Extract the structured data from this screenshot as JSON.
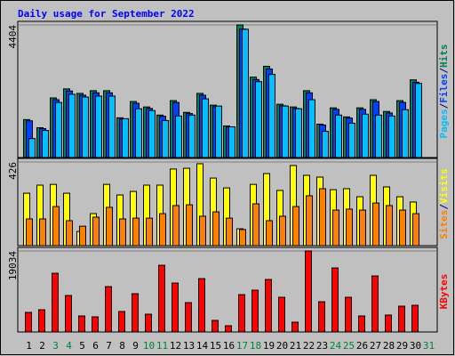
{
  "title": "Daily usage for September 2022",
  "chart_data": [
    {
      "type": "bar",
      "legend_separator": "/",
      "ylim": [
        0,
        4404
      ],
      "yticks": [
        4404
      ],
      "grid": true,
      "series": [
        {
          "name": "Pages",
          "color": "#00c0ff",
          "values": [
            630,
            900,
            1830,
            2100,
            2010,
            2040,
            2040,
            1290,
            1620,
            1560,
            1230,
            1380,
            1410,
            1950,
            1710,
            1020,
            4260,
            2520,
            2760,
            1710,
            1620,
            1920,
            870,
            1410,
            1140,
            1440,
            1410,
            1380,
            1590,
            2460,
            null
          ]
        },
        {
          "name": "Files",
          "color": "#0040ff",
          "values": [
            1220,
            960,
            1920,
            2210,
            2070,
            2150,
            2150,
            1280,
            1800,
            1630,
            1370,
            1830,
            1460,
            2070,
            1690,
            1020,
            4270,
            2590,
            2940,
            1720,
            1630,
            2150,
            1080,
            1600,
            1310,
            1600,
            1860,
            1480,
            1830,
            2500,
            null
          ]
        },
        {
          "name": "Hits",
          "color": "#00805c",
          "values": [
            1260,
            990,
            1980,
            2280,
            2130,
            2220,
            2220,
            1320,
            1860,
            1680,
            1410,
            1890,
            1500,
            2130,
            1740,
            1050,
            4404,
            2670,
            3030,
            1770,
            1680,
            2220,
            1110,
            1650,
            1350,
            1650,
            1920,
            1530,
            1890,
            2580,
            null
          ]
        }
      ]
    },
    {
      "type": "bar",
      "legend_separator": "/",
      "ylim": [
        0,
        426
      ],
      "yticks": [
        426
      ],
      "grid": true,
      "series": [
        {
          "name": "Sites",
          "color": "#ff8000",
          "values": [
            136,
            136,
            199,
            127,
            99,
            145,
            195,
            136,
            140,
            140,
            163,
            204,
            208,
            150,
            172,
            140,
            82,
            213,
            127,
            150,
            199,
            254,
            290,
            181,
            186,
            181,
            217,
            204,
            181,
            163,
            null
          ]
        },
        {
          "name": "Visits",
          "color": "#ffff00",
          "values": [
            267,
            308,
            312,
            267,
            72,
            163,
            312,
            258,
            276,
            308,
            308,
            390,
            394,
            417,
            344,
            294,
            86,
            312,
            367,
            281,
            408,
            358,
            349,
            285,
            290,
            249,
            358,
            299,
            249,
            222,
            null
          ]
        }
      ]
    },
    {
      "type": "bar",
      "legend_separator": "/",
      "ylim": [
        0,
        19034
      ],
      "yticks": [
        19034
      ],
      "grid": true,
      "categories": [
        "1",
        "2",
        "3",
        "4",
        "5",
        "6",
        "7",
        "8",
        "9",
        "10",
        "11",
        "12",
        "13",
        "14",
        "15",
        "16",
        "17",
        "18",
        "19",
        "20",
        "21",
        "22",
        "23",
        "24",
        "25",
        "26",
        "27",
        "28",
        "29",
        "30",
        "31"
      ],
      "category_colors": [
        "#000000",
        "#000000",
        "#008040",
        "#008040",
        "#000000",
        "#000000",
        "#000000",
        "#000000",
        "#000000",
        "#008040",
        "#008040",
        "#000000",
        "#000000",
        "#000000",
        "#000000",
        "#000000",
        "#008040",
        "#008040",
        "#000000",
        "#000000",
        "#000000",
        "#000000",
        "#000000",
        "#008040",
        "#008040",
        "#000000",
        "#000000",
        "#000000",
        "#000000",
        "#000000",
        "#008040"
      ],
      "series": [
        {
          "name": "KBytes",
          "color": "#ff0000",
          "values": [
            4600,
            5225,
            13794,
            8569,
            3762,
            3553,
            10659,
            4807,
            8987,
            4180,
            15675,
            11495,
            6897,
            12540,
            2717,
            1463,
            8778,
            9823,
            12331,
            8151,
            2299,
            19034,
            7106,
            15048,
            8151,
            3762,
            13167,
            3971,
            6061,
            6270,
            null
          ]
        }
      ]
    }
  ]
}
